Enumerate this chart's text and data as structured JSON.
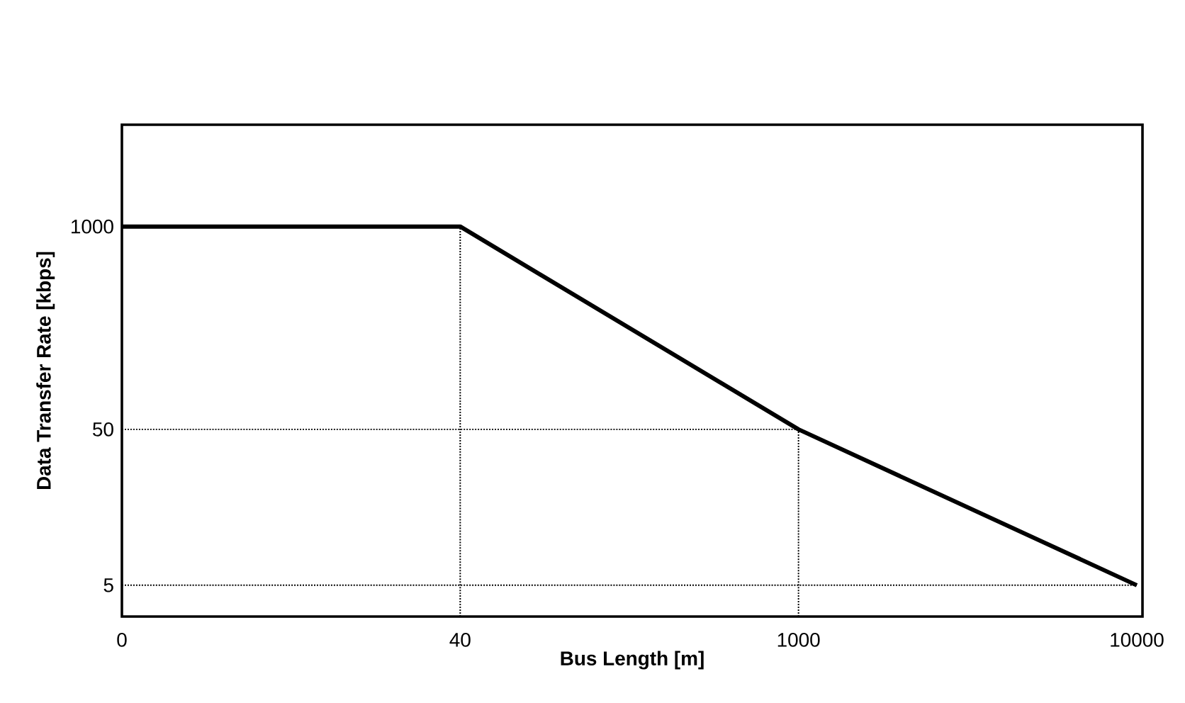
{
  "chart_data": {
    "type": "line",
    "xlabel": "Bus Length [m]",
    "ylabel": "Data Transfer Rate [kbps]",
    "categories": [
      "0",
      "40",
      "1000",
      "10000"
    ],
    "series": [
      {
        "color": "#000000",
        "values": [
          1000,
          1000,
          50,
          5
        ]
      }
    ],
    "log": "y",
    "ylim": [
      3.15,
      4500
    ],
    "yticks": [
      5,
      50,
      1000
    ],
    "marker": "none",
    "line_style": "solid",
    "ref_lines": [
      {
        "axis": "x",
        "value": "40",
        "color": "#000000",
        "line_style": "dotted"
      },
      {
        "axis": "x",
        "value": "1000",
        "color": "#000000",
        "line_style": "dotted"
      },
      {
        "axis": "y",
        "value": 50,
        "color": "#000000",
        "line_style": "dotted"
      },
      {
        "axis": "y",
        "value": 5,
        "color": "#000000",
        "line_style": "dotted"
      }
    ]
  }
}
